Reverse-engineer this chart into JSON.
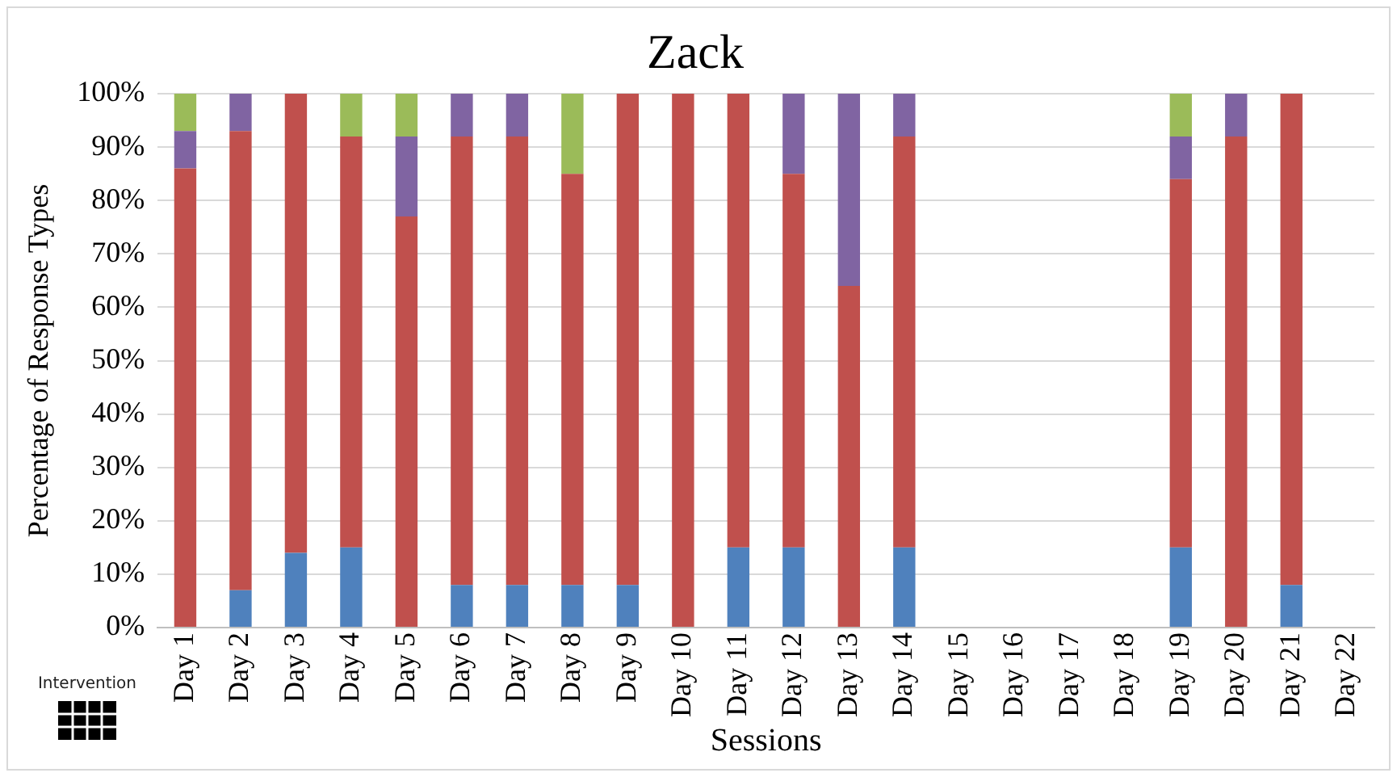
{
  "chart_data": {
    "type": "bar",
    "title": "Zack",
    "xlabel": "Sessions",
    "ylabel": "Percentage of Response Types",
    "stacked": true,
    "grid": "y",
    "legend": false,
    "categories": [
      "Day 1",
      "Day 2",
      "Day 3",
      "Day 4",
      "Day 5",
      "Day 6",
      "Day 7",
      "Day 8",
      "Day 9",
      "Day 10",
      "Day 11",
      "Day 12",
      "Day 13",
      "Day 14",
      "Day 15",
      "Day 16",
      "Day 17",
      "Day 18",
      "Day 19",
      "Day 20",
      "Day 21",
      "Day 22"
    ],
    "series": [
      {
        "color": "#4f81bd",
        "values": [
          0,
          7,
          14,
          15,
          0,
          8,
          8,
          8,
          8,
          0,
          15,
          15,
          0,
          15,
          null,
          null,
          null,
          null,
          15,
          0,
          8,
          null
        ]
      },
      {
        "color": "#c0504d",
        "values": [
          86,
          86,
          86,
          77,
          77,
          84,
          84,
          77,
          92,
          100,
          85,
          70,
          64,
          77,
          null,
          null,
          null,
          null,
          69,
          92,
          92,
          null
        ]
      },
      {
        "color": "#8064a2",
        "values": [
          7,
          7,
          0,
          0,
          15,
          8,
          8,
          0,
          0,
          0,
          0,
          15,
          36,
          8,
          null,
          null,
          null,
          null,
          8,
          8,
          0,
          null
        ]
      },
      {
        "color": "#9bbb59",
        "values": [
          7,
          0,
          0,
          8,
          8,
          0,
          0,
          15,
          0,
          0,
          0,
          0,
          0,
          0,
          null,
          null,
          null,
          null,
          8,
          0,
          0,
          null
        ]
      }
    ],
    "ylim": [
      0,
      100
    ],
    "yticks": [
      {
        "value": 0,
        "label": "0%"
      },
      {
        "value": 10,
        "label": "10%"
      },
      {
        "value": 20,
        "label": "20%"
      },
      {
        "value": 30,
        "label": "30%"
      },
      {
        "value": 40,
        "label": "40%"
      },
      {
        "value": 50,
        "label": "50%"
      },
      {
        "value": 60,
        "label": "60%"
      },
      {
        "value": 70,
        "label": "70%"
      },
      {
        "value": 80,
        "label": "80%"
      },
      {
        "value": 90,
        "label": "90%"
      },
      {
        "value": 100,
        "label": "100%"
      }
    ],
    "annotations": [
      "Intervention"
    ]
  }
}
